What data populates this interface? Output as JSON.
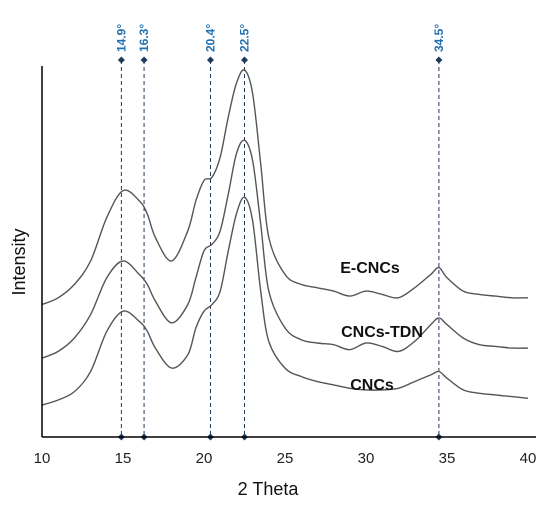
{
  "chart_data": {
    "type": "line",
    "xlabel": "2 Theta",
    "ylabel": "Intensity",
    "xlim": [
      10,
      40
    ],
    "x_ticks": [
      10,
      15,
      20,
      25,
      30,
      35,
      40
    ],
    "tick_labels": [
      "10",
      "15",
      "20",
      "25",
      "30",
      "35",
      "40"
    ],
    "y_ticks_shown": false,
    "grid": false,
    "peaks": [
      {
        "x": 14.9,
        "label": "14.9°"
      },
      {
        "x": 16.3,
        "label": "16.3°"
      },
      {
        "x": 20.4,
        "label": "20.4°"
      },
      {
        "x": 22.5,
        "label": "22.5°"
      },
      {
        "x": 34.5,
        "label": "34.5°"
      }
    ],
    "peak_color": "#1f6fb2",
    "series": [
      {
        "name": "E-CNCs",
        "x": [
          10,
          11,
          12,
          13,
          14,
          15,
          16,
          16.5,
          17,
          18,
          19,
          19.5,
          20,
          20.5,
          21,
          21.5,
          22,
          22.5,
          23,
          23.5,
          24,
          25,
          26,
          27,
          28,
          29,
          30,
          31,
          32,
          33,
          34,
          34.5,
          35,
          36,
          37,
          38,
          39,
          40
        ],
        "y": [
          3.0,
          3.2,
          3.6,
          4.3,
          5.6,
          6.4,
          6.1,
          5.7,
          5.0,
          4.3,
          5.2,
          6.1,
          6.7,
          6.8,
          7.4,
          8.6,
          9.6,
          10.0,
          9.3,
          7.2,
          5.0,
          3.9,
          3.6,
          3.5,
          3.4,
          3.25,
          3.4,
          3.3,
          3.2,
          3.5,
          3.9,
          4.1,
          3.8,
          3.4,
          3.3,
          3.25,
          3.2,
          3.2
        ]
      },
      {
        "name": "CNCs-TDN",
        "x": [
          10,
          11,
          12,
          13,
          14,
          15,
          16,
          16.5,
          17,
          18,
          19,
          19.5,
          20,
          20.5,
          21,
          21.5,
          22,
          22.5,
          23,
          23.5,
          24,
          25,
          26,
          27,
          28,
          29,
          30,
          31,
          32,
          33,
          34,
          34.5,
          35,
          36,
          37,
          38,
          39,
          40
        ],
        "y": [
          1.4,
          1.6,
          2.0,
          2.7,
          3.8,
          4.3,
          3.9,
          3.6,
          3.1,
          2.45,
          3.0,
          3.8,
          4.6,
          4.8,
          5.2,
          6.3,
          7.5,
          7.9,
          7.3,
          5.4,
          3.4,
          2.3,
          1.95,
          1.85,
          1.8,
          1.65,
          1.85,
          1.75,
          1.6,
          1.9,
          2.4,
          2.6,
          2.4,
          2.0,
          1.8,
          1.75,
          1.7,
          1.7
        ]
      },
      {
        "name": "CNCs",
        "x": [
          10,
          11,
          12,
          13,
          14,
          15,
          16,
          16.5,
          17,
          18,
          19,
          19.5,
          20,
          20.5,
          21,
          21.5,
          22,
          22.5,
          23,
          23.5,
          24,
          25,
          26,
          27,
          28,
          29,
          30,
          31,
          32,
          33,
          34,
          34.5,
          35,
          36,
          37,
          38,
          39,
          40
        ],
        "y": [
          0.0,
          0.15,
          0.4,
          1.0,
          2.2,
          2.8,
          2.5,
          2.2,
          1.7,
          1.1,
          1.5,
          2.3,
          2.8,
          3.0,
          3.4,
          4.6,
          5.7,
          6.2,
          5.5,
          3.4,
          1.9,
          1.1,
          0.85,
          0.7,
          0.6,
          0.5,
          0.45,
          0.45,
          0.5,
          0.7,
          0.9,
          1.0,
          0.8,
          0.45,
          0.35,
          0.3,
          0.25,
          0.2
        ]
      }
    ]
  }
}
